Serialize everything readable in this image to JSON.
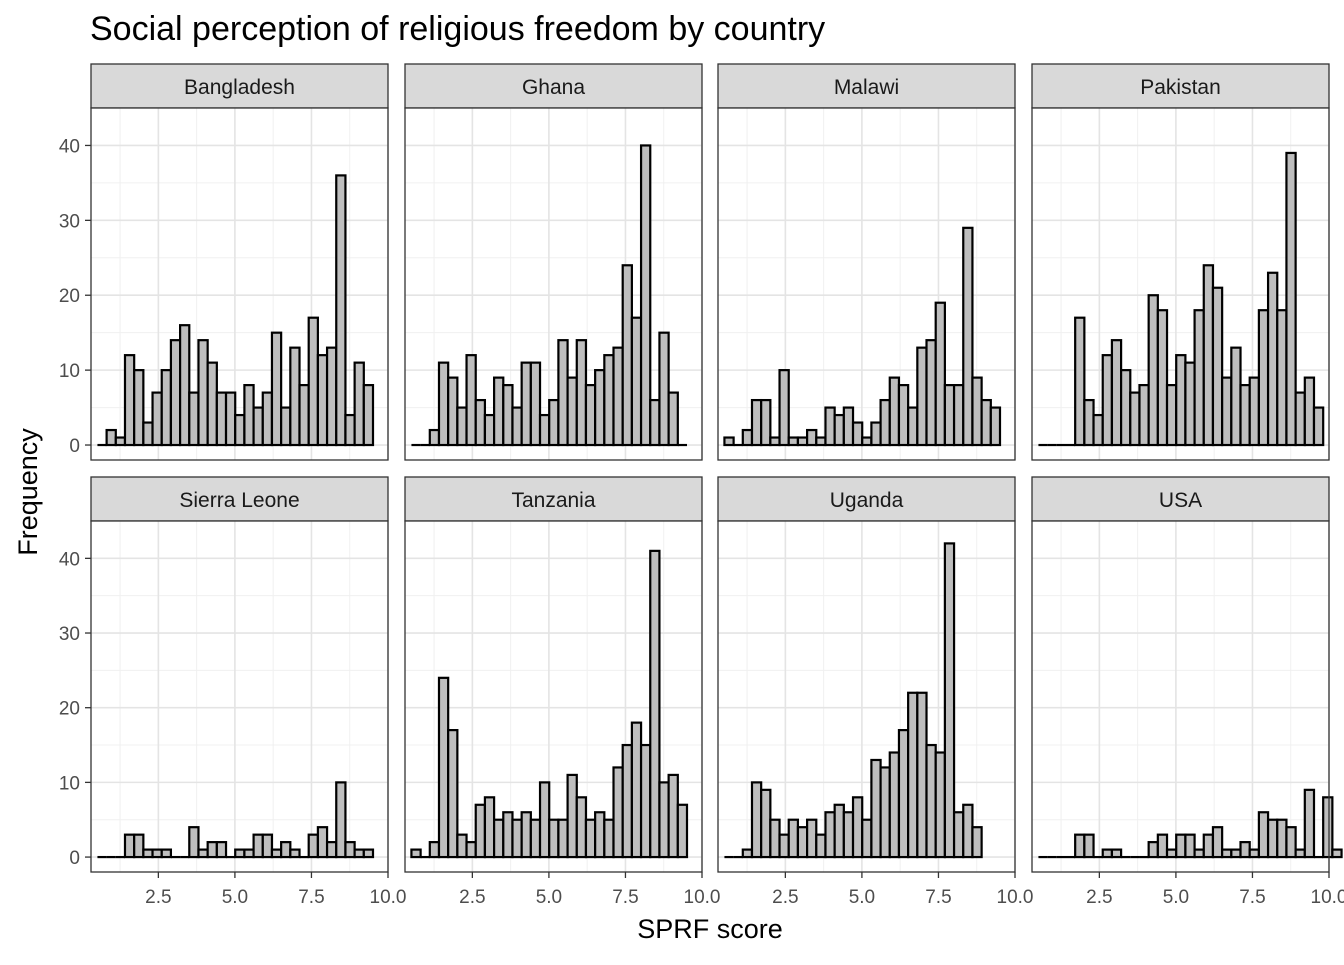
{
  "chart_data": {
    "type": "bar",
    "title": "Social perception of religious freedom by country",
    "xlabel": "SPRF score",
    "ylabel": "Frequency",
    "xlim": [
      0.3,
      10.0
    ],
    "ylim": [
      -2,
      45
    ],
    "x_ticks": [
      "2.5",
      "5.0",
      "7.5",
      "10.0"
    ],
    "y_ticks": [
      "0",
      "10",
      "20",
      "30",
      "40"
    ],
    "bin_start": 0.51,
    "bin_width": 0.3,
    "grid": true,
    "theme": "facet grid 2 rows x 4 columns, shared axes",
    "bar_color": "#bebebe",
    "bar_outline": "#000000",
    "strip_fill": "#d9d9d9",
    "panels": [
      {
        "name": "Bangladesh",
        "values": [
          0,
          2,
          1,
          12,
          10,
          3,
          7,
          10,
          14,
          16,
          7,
          14,
          11,
          7,
          7,
          4,
          8,
          5,
          7,
          15,
          5,
          13,
          8,
          17,
          12,
          13,
          36,
          4,
          11,
          8
        ]
      },
      {
        "name": "Ghana",
        "values": [
          0,
          0,
          2,
          11,
          9,
          5,
          12,
          6,
          4,
          9,
          8,
          5,
          11,
          11,
          4,
          6,
          14,
          9,
          14,
          8,
          10,
          12,
          13,
          24,
          17,
          40,
          6,
          15,
          7,
          0
        ]
      },
      {
        "name": "Malawi",
        "values": [
          1,
          0,
          2,
          6,
          6,
          1,
          10,
          1,
          1,
          2,
          1,
          5,
          4,
          5,
          3,
          1,
          3,
          6,
          9,
          8,
          5,
          13,
          14,
          19,
          8,
          8,
          29,
          9,
          6,
          5
        ]
      },
      {
        "name": "Pakistan",
        "values": [
          0,
          0,
          0,
          0,
          17,
          6,
          4,
          12,
          14,
          10,
          7,
          8,
          20,
          18,
          8,
          12,
          11,
          18,
          24,
          21,
          9,
          13,
          8,
          9,
          18,
          23,
          18,
          39,
          7,
          9,
          5
        ]
      },
      {
        "name": "Sierra Leone",
        "values": [
          0,
          0,
          0,
          3,
          3,
          1,
          1,
          1,
          0,
          0,
          4,
          1,
          2,
          2,
          0,
          1,
          1,
          3,
          3,
          1,
          2,
          1,
          0,
          3,
          4,
          2,
          10,
          2,
          1,
          1
        ]
      },
      {
        "name": "Tanzania",
        "values": [
          1,
          0,
          2,
          24,
          17,
          3,
          2,
          7,
          8,
          5,
          6,
          5,
          6,
          5,
          10,
          5,
          5,
          11,
          8,
          5,
          6,
          5,
          12,
          15,
          18,
          15,
          41,
          10,
          11,
          7
        ]
      },
      {
        "name": "Uganda",
        "values": [
          0,
          0,
          1,
          10,
          9,
          5,
          3,
          5,
          4,
          5,
          3,
          6,
          7,
          6,
          8,
          5,
          13,
          12,
          14,
          17,
          22,
          22,
          15,
          14,
          42,
          6,
          7,
          4
        ]
      },
      {
        "name": "USA",
        "values": [
          0,
          0,
          0,
          0,
          3,
          3,
          0,
          1,
          1,
          0,
          0,
          0,
          2,
          3,
          1,
          3,
          3,
          1,
          3,
          4,
          1,
          1,
          2,
          1,
          6,
          5,
          5,
          4,
          1,
          9,
          0,
          8,
          1
        ]
      }
    ]
  }
}
